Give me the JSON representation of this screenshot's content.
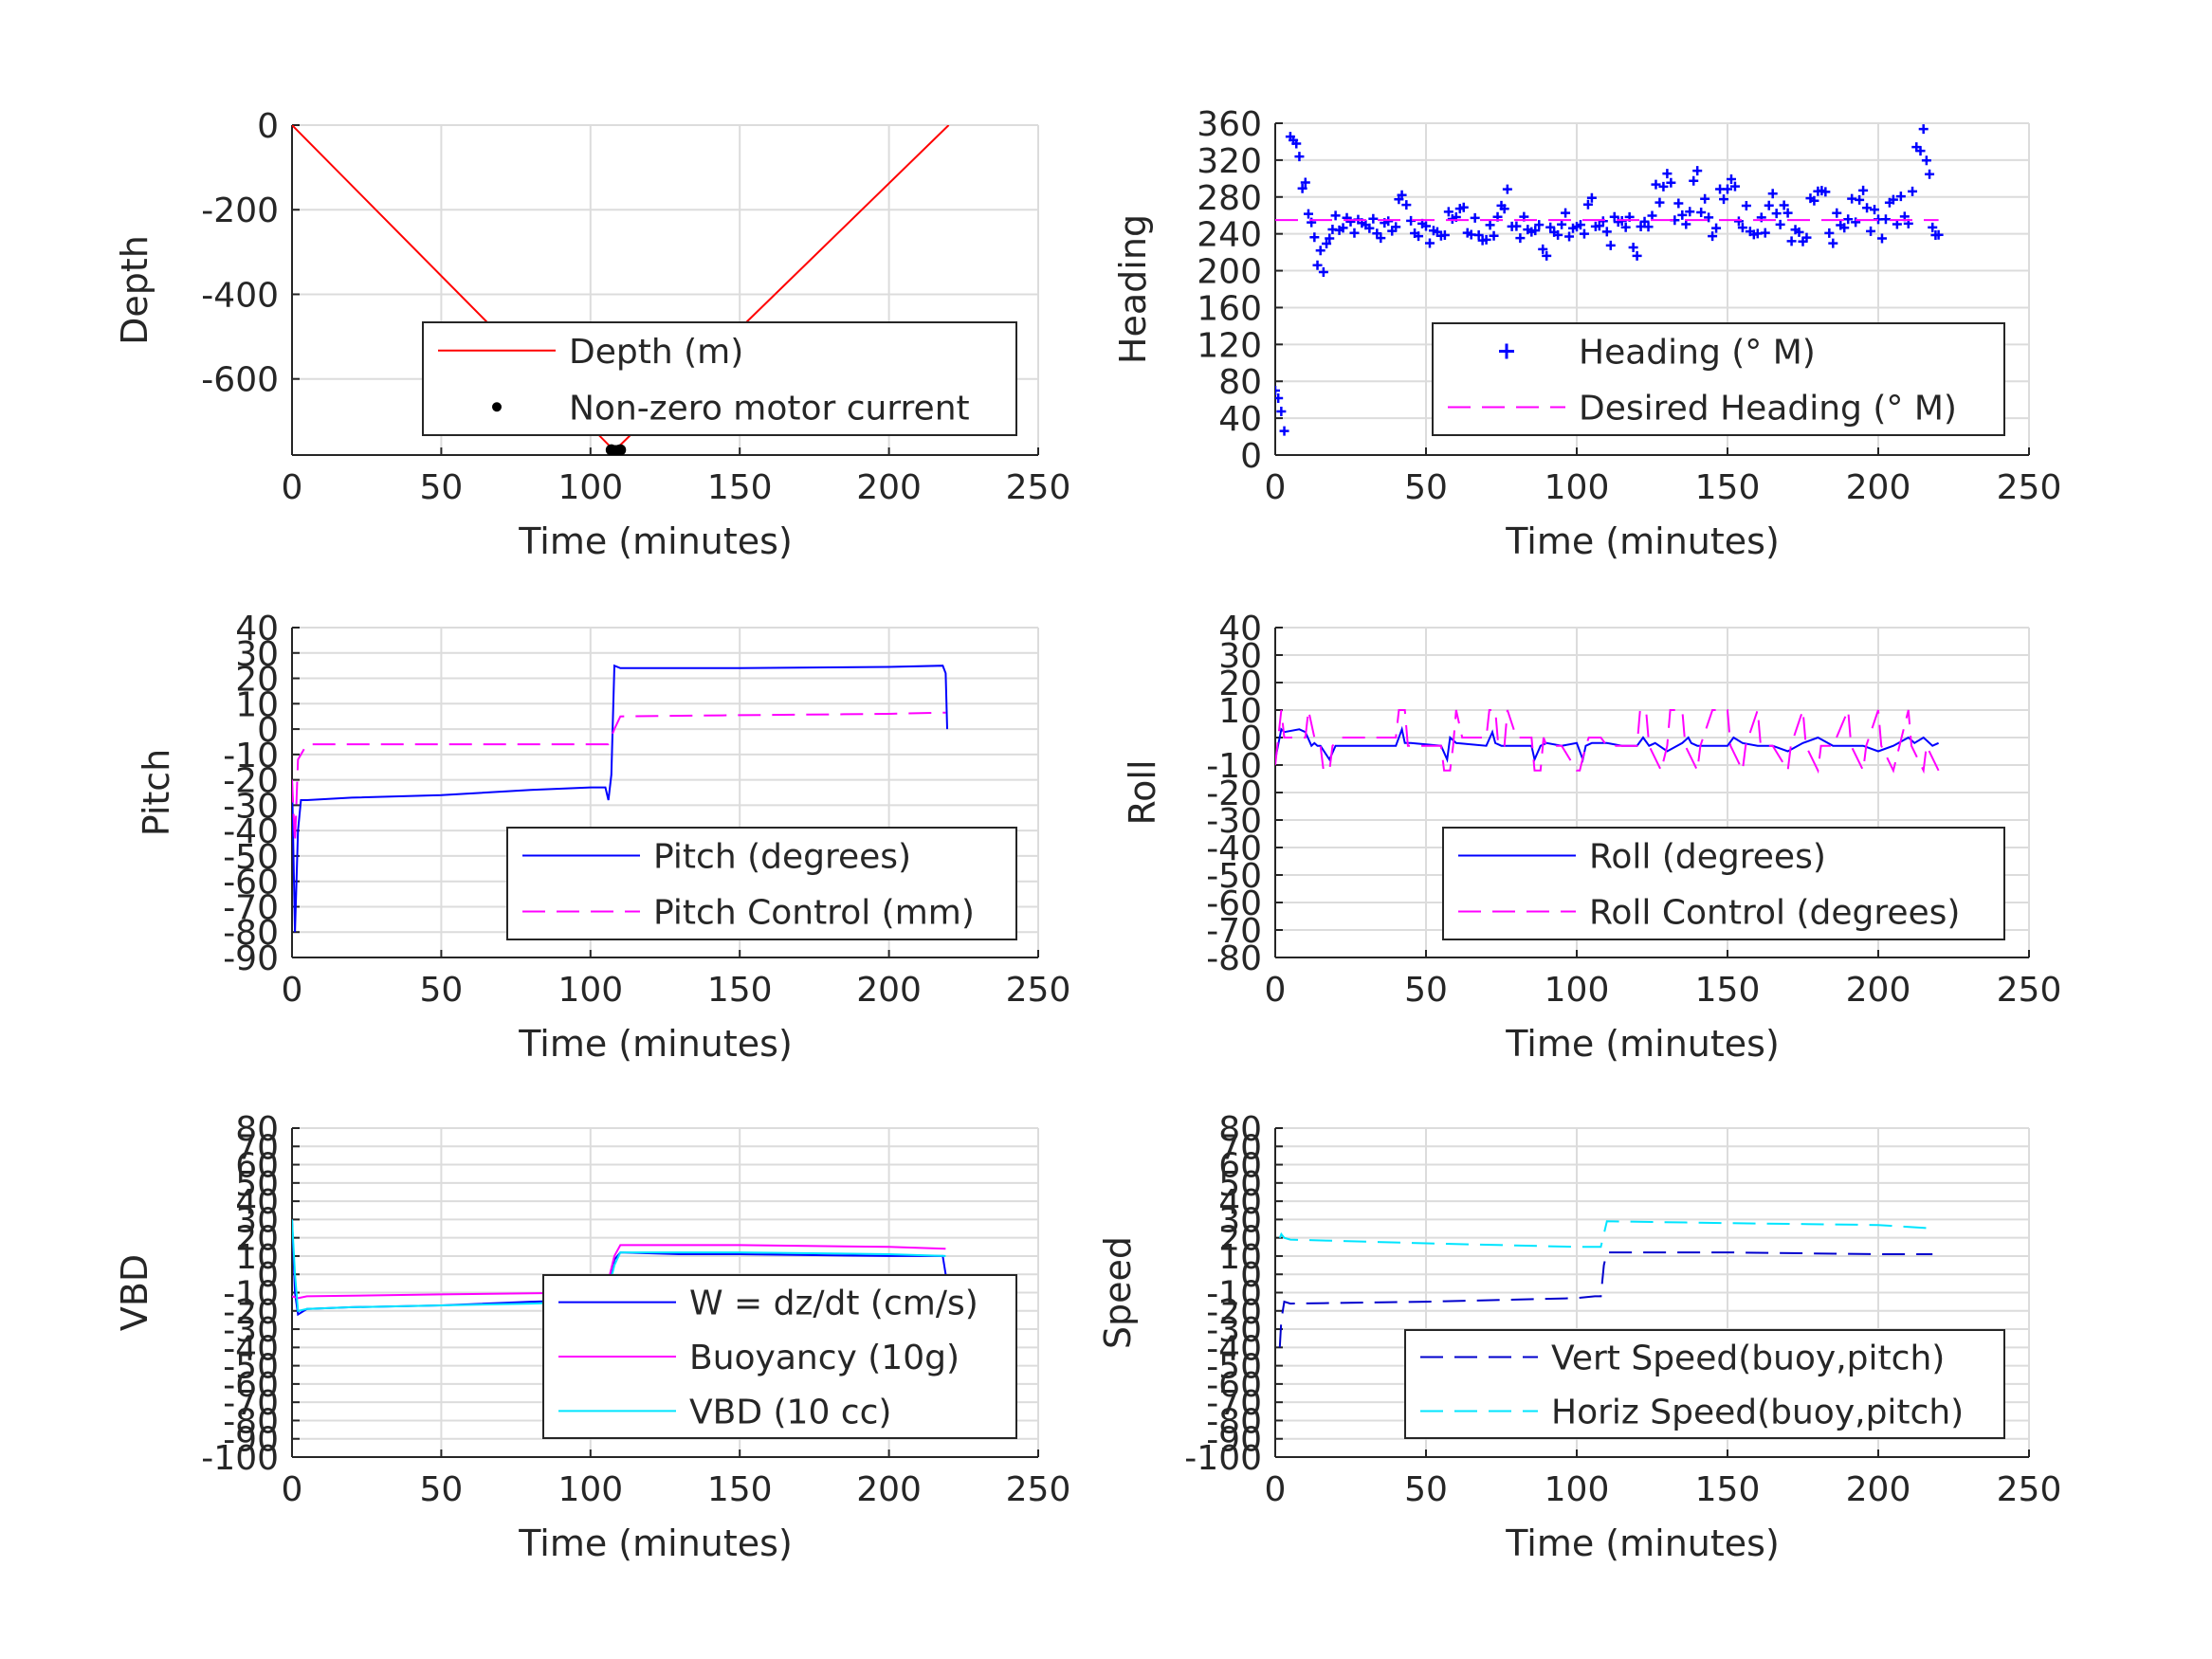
{
  "chart_data": [
    {
      "id": "depth",
      "type": "line",
      "ylabel": "Depth",
      "xlabel": "Time (minutes)",
      "xlim": [
        0,
        250
      ],
      "ylim": [
        -780,
        0
      ],
      "xticks": [
        "0",
        "50",
        "100",
        "150",
        "200",
        "250"
      ],
      "yticks": [
        "0",
        "-200",
        "-400",
        "-600"
      ],
      "ytick_values": [
        0,
        -200,
        -400,
        -600
      ],
      "grid": true,
      "legend_placement": "lower-right",
      "series": [
        {
          "name": "Depth (m)",
          "style": "solid",
          "color": "#ff0000",
          "x": [
            0,
            108,
            220
          ],
          "y": [
            0,
            -770,
            0
          ]
        },
        {
          "name": "Non-zero motor current",
          "style": "dots",
          "color": "#000000",
          "x": [
            107,
            107.5,
            108,
            108.5,
            109,
            109.5,
            110
          ],
          "y": [
            -768,
            -770,
            -770,
            -770,
            -770,
            -769,
            -768
          ]
        }
      ]
    },
    {
      "id": "heading",
      "type": "scatter",
      "ylabel": "Heading",
      "xlabel": "Time (minutes)",
      "xlim": [
        0,
        250
      ],
      "ylim": [
        0,
        360
      ],
      "xticks": [
        "0",
        "50",
        "100",
        "150",
        "200",
        "250"
      ],
      "yticks": [
        "360",
        "320",
        "280",
        "240",
        "200",
        "160",
        "120",
        "80",
        "40",
        "0"
      ],
      "ytick_values": [
        360,
        320,
        280,
        240,
        200,
        160,
        120,
        80,
        40,
        0
      ],
      "grid": true,
      "legend_placement": "lower-right",
      "series": [
        {
          "name": "Heading (° M)",
          "style": "plus",
          "color": "#0000ff",
          "x": [
            0,
            1,
            2,
            3,
            4,
            5,
            6,
            7,
            8,
            10,
            12,
            14,
            16,
            18,
            20,
            25,
            30,
            35,
            40,
            42,
            45,
            50,
            55,
            60,
            65,
            70,
            75,
            77,
            80,
            85,
            90,
            95,
            100,
            105,
            110,
            115,
            120,
            125,
            130,
            135,
            140,
            145,
            150,
            155,
            160,
            165,
            170,
            175,
            180,
            185,
            190,
            195,
            200,
            205,
            210,
            214,
            216,
            218,
            220
          ],
          "y": [
            70,
            55,
            40,
            25,
            10,
            355,
            345,
            330,
            310,
            290,
            260,
            220,
            205,
            230,
            250,
            248,
            252,
            245,
            255,
            280,
            245,
            240,
            238,
            270,
            250,
            235,
            260,
            275,
            245,
            250,
            230,
            255,
            240,
            265,
            235,
            260,
            230,
            270,
            300,
            245,
            295,
            240,
            305,
            260,
            240,
            270,
            250,
            230,
            300,
            245,
            260,
            275,
            240,
            270,
            260,
            350,
            330,
            240,
            225
          ],
          "y_spread": [
            8,
            8,
            8,
            8,
            8,
            10,
            12,
            12,
            14,
            14,
            14,
            14,
            12,
            12,
            10,
            8,
            8,
            10,
            10,
            14,
            10,
            10,
            10,
            14,
            12,
            10,
            14,
            14,
            12,
            12,
            14,
            12,
            14,
            14,
            14,
            14,
            14,
            16,
            18,
            16,
            18,
            16,
            18,
            16,
            14,
            16,
            14,
            14,
            18,
            16,
            16,
            18,
            16,
            18,
            16,
            20,
            20,
            16,
            14
          ]
        },
        {
          "name": "Desired Heading (° M)",
          "style": "dashed",
          "color": "#ff00ff",
          "x": [
            0,
            220
          ],
          "y": [
            255,
            255
          ]
        }
      ]
    },
    {
      "id": "pitch",
      "type": "line",
      "ylabel": "Pitch",
      "xlabel": "Time (minutes)",
      "xlim": [
        0,
        250
      ],
      "ylim": [
        -90,
        40
      ],
      "xticks": [
        "0",
        "50",
        "100",
        "150",
        "200",
        "250"
      ],
      "yticks": [
        "40",
        "30",
        "20",
        "10",
        "0",
        "-10",
        "-20",
        "-30",
        "-40",
        "-50",
        "-60",
        "-70",
        "-80",
        "-90"
      ],
      "ytick_values": [
        40,
        30,
        20,
        10,
        0,
        -10,
        -20,
        -30,
        -40,
        -50,
        -60,
        -70,
        -80,
        -90
      ],
      "grid": true,
      "legend_placement": "lower-right",
      "series": [
        {
          "name": "Pitch (degrees)",
          "style": "solid",
          "color": "#0000ff",
          "x": [
            0,
            1,
            2,
            3,
            5,
            20,
            50,
            80,
            100,
            105,
            106,
            107,
            108,
            110,
            150,
            200,
            218,
            219,
            219.5
          ],
          "y": [
            -20,
            -80,
            -40,
            -28,
            -28,
            -27,
            -26,
            -24,
            -23,
            -23,
            -28,
            -18,
            25,
            24,
            24,
            24.5,
            25,
            22,
            0
          ]
        },
        {
          "name": "Pitch Control (mm)",
          "style": "dashed",
          "color": "#ff00ff",
          "x": [
            0,
            1,
            2,
            5,
            50,
            100,
            106,
            108,
            110,
            150,
            200,
            219
          ],
          "y": [
            -20,
            -45,
            -12,
            -6,
            -6,
            -6,
            -6,
            0,
            5,
            5.5,
            6,
            6.5
          ]
        }
      ]
    },
    {
      "id": "roll",
      "type": "line",
      "ylabel": "Roll",
      "xlabel": "Time (minutes)",
      "xlim": [
        0,
        250
      ],
      "ylim": [
        -80,
        40
      ],
      "xticks": [
        "0",
        "50",
        "100",
        "150",
        "200",
        "250"
      ],
      "yticks": [
        "40",
        "30",
        "20",
        "10",
        "0",
        "-10",
        "-20",
        "-30",
        "-40",
        "-50",
        "-60",
        "-70",
        "-80"
      ],
      "ytick_values": [
        40,
        30,
        20,
        10,
        0,
        -10,
        -20,
        -30,
        -40,
        -50,
        -60,
        -70,
        -80
      ],
      "grid": true,
      "legend_placement": "lower-right",
      "series": [
        {
          "name": "Roll (degrees)",
          "style": "solid",
          "color": "#0000ff",
          "x": [
            0,
            2,
            3,
            8,
            10,
            12,
            13,
            14,
            15,
            18,
            20,
            40,
            42,
            43,
            45,
            55,
            57,
            58,
            60,
            70,
            72,
            73,
            75,
            85,
            86,
            88,
            90,
            95,
            100,
            102,
            103,
            105,
            110,
            115,
            120,
            122,
            124,
            126,
            130,
            135,
            137,
            138,
            140,
            145,
            150,
            152,
            155,
            160,
            165,
            170,
            175,
            180,
            185,
            190,
            195,
            200,
            205,
            210,
            212,
            215,
            218,
            220
          ],
          "y": [
            -8,
            3,
            2,
            3,
            2,
            -3,
            -2,
            -3,
            -3,
            -8,
            -3,
            -3,
            3,
            -2,
            -2,
            -3,
            -8,
            0,
            -2,
            -3,
            2,
            -2,
            -3,
            -3,
            -8,
            -3,
            -2,
            -3,
            -2,
            -8,
            -3,
            -2,
            -2,
            -3,
            -3,
            0,
            -3,
            -2,
            -5,
            -2,
            0,
            -2,
            -3,
            -3,
            -3,
            0,
            -2,
            -3,
            -3,
            -5,
            -2,
            0,
            -3,
            -3,
            -3,
            -5,
            -3,
            0,
            -2,
            0,
            -3,
            -2
          ]
        },
        {
          "name": "Roll Control (degrees)",
          "style": "dashed",
          "color": "#ff00ff",
          "x": [
            0,
            2,
            3,
            10,
            11,
            13,
            15,
            16,
            18,
            19,
            22,
            40,
            41,
            43,
            44,
            55,
            56,
            58,
            59,
            60,
            62,
            70,
            71,
            73,
            74,
            76,
            77,
            80,
            85,
            86,
            88,
            89,
            90,
            95,
            100,
            101,
            103,
            104,
            108,
            110,
            120,
            121,
            123,
            124,
            128,
            130,
            131,
            135,
            136,
            140,
            141,
            145,
            150,
            151,
            155,
            156,
            160,
            161,
            165,
            170,
            171,
            175,
            176,
            180,
            181,
            185,
            190,
            191,
            195,
            196,
            200,
            201,
            205,
            210,
            211,
            215,
            216,
            220
          ],
          "y": [
            -10,
            10,
            0,
            0,
            10,
            0,
            -3,
            -12,
            -12,
            -3,
            0,
            0,
            10,
            10,
            -3,
            -3,
            -12,
            -12,
            -3,
            10,
            0,
            0,
            10,
            10,
            -3,
            -3,
            10,
            0,
            0,
            -12,
            -12,
            0,
            -3,
            -3,
            -12,
            -12,
            -3,
            0,
            0,
            -3,
            -3,
            10,
            10,
            -3,
            -12,
            -3,
            10,
            10,
            -3,
            -12,
            -3,
            10,
            10,
            -3,
            -12,
            -3,
            10,
            -3,
            -3,
            -12,
            -3,
            10,
            -3,
            -12,
            -3,
            -3,
            10,
            -3,
            -12,
            -3,
            10,
            -3,
            -12,
            10,
            -3,
            -12,
            -3,
            -12
          ]
        }
      ]
    },
    {
      "id": "vbd",
      "type": "line",
      "ylabel": "VBD",
      "xlabel": "Time (minutes)",
      "xlim": [
        0,
        250
      ],
      "ylim": [
        -100,
        80
      ],
      "xticks": [
        "0",
        "50",
        "100",
        "150",
        "200",
        "250"
      ],
      "yticks": [
        "80",
        "70",
        "60",
        "50",
        "40",
        "30",
        "20",
        "10",
        "0",
        "-10",
        "-20",
        "-30",
        "-40",
        "-50",
        "-60",
        "-70",
        "-80",
        "-90",
        "-100"
      ],
      "ytick_values": [
        80,
        70,
        60,
        50,
        40,
        30,
        20,
        10,
        0,
        -10,
        -20,
        -30,
        -40,
        -50,
        -60,
        -70,
        -80,
        -90,
        -100
      ],
      "grid": true,
      "legend_placement": "lower-right",
      "series": [
        {
          "name": "W = dz/dt (cm/s)",
          "style": "solid",
          "color": "#0000ff",
          "x": [
            0,
            1,
            2,
            5,
            20,
            50,
            80,
            100,
            105,
            108,
            110,
            130,
            150,
            200,
            218,
            219
          ],
          "y": [
            30,
            -10,
            -22,
            -19,
            -18,
            -17,
            -15,
            -14,
            -14,
            8,
            12,
            11,
            11,
            10,
            10,
            0
          ]
        },
        {
          "name": "Buoyancy (10g)",
          "style": "solid",
          "color": "#ff00ff",
          "x": [
            0,
            2,
            5,
            50,
            100,
            105,
            108,
            110,
            150,
            200,
            219
          ],
          "y": [
            -12,
            -13,
            -12,
            -11,
            -10,
            -10,
            10,
            16,
            16,
            15,
            14
          ]
        },
        {
          "name": "VBD (10 cc)",
          "style": "solid",
          "color": "#00e5ff",
          "x": [
            0,
            1,
            2,
            5,
            20,
            50,
            80,
            100,
            105,
            108,
            110,
            150,
            200,
            219
          ],
          "y": [
            30,
            0,
            -20,
            -19,
            -18,
            -17,
            -16,
            -15,
            -15,
            5,
            12,
            12,
            11,
            10
          ]
        }
      ]
    },
    {
      "id": "speed",
      "type": "line",
      "ylabel": "Speed",
      "xlabel": "Time (minutes)",
      "xlim": [
        0,
        250
      ],
      "ylim": [
        -100,
        80
      ],
      "xticks": [
        "0",
        "50",
        "100",
        "150",
        "200",
        "250"
      ],
      "yticks": [
        "80",
        "70",
        "60",
        "50",
        "40",
        "30",
        "20",
        "10",
        "0",
        "-10",
        "-20",
        "-30",
        "-40",
        "-50",
        "-60",
        "-70",
        "-80",
        "-90",
        "-100"
      ],
      "ytick_values": [
        80,
        70,
        60,
        50,
        40,
        30,
        20,
        10,
        0,
        -10,
        -20,
        -30,
        -40,
        -50,
        -60,
        -70,
        -80,
        -90,
        -100
      ],
      "grid": true,
      "legend_placement": "lower-right",
      "series": [
        {
          "name": "Vert Speed(buoy,pitch)",
          "style": "dashed",
          "color": "#0000cd",
          "x": [
            1.5,
            2,
            3,
            5,
            50,
            100,
            106,
            108,
            109,
            110,
            150,
            200,
            218
          ],
          "y": [
            -40,
            -25,
            -15,
            -16,
            -15,
            -13,
            -12,
            -12,
            5,
            12,
            12,
            11,
            11
          ]
        },
        {
          "name": "Horiz Speed(buoy,pitch)",
          "style": "dashed",
          "color": "#00e5ff",
          "x": [
            1.5,
            2,
            3,
            5,
            50,
            100,
            106,
            108,
            110,
            150,
            200,
            219
          ],
          "y": [
            20,
            22,
            20,
            19,
            17,
            15,
            15,
            15,
            29,
            28,
            27,
            25
          ]
        }
      ]
    }
  ]
}
